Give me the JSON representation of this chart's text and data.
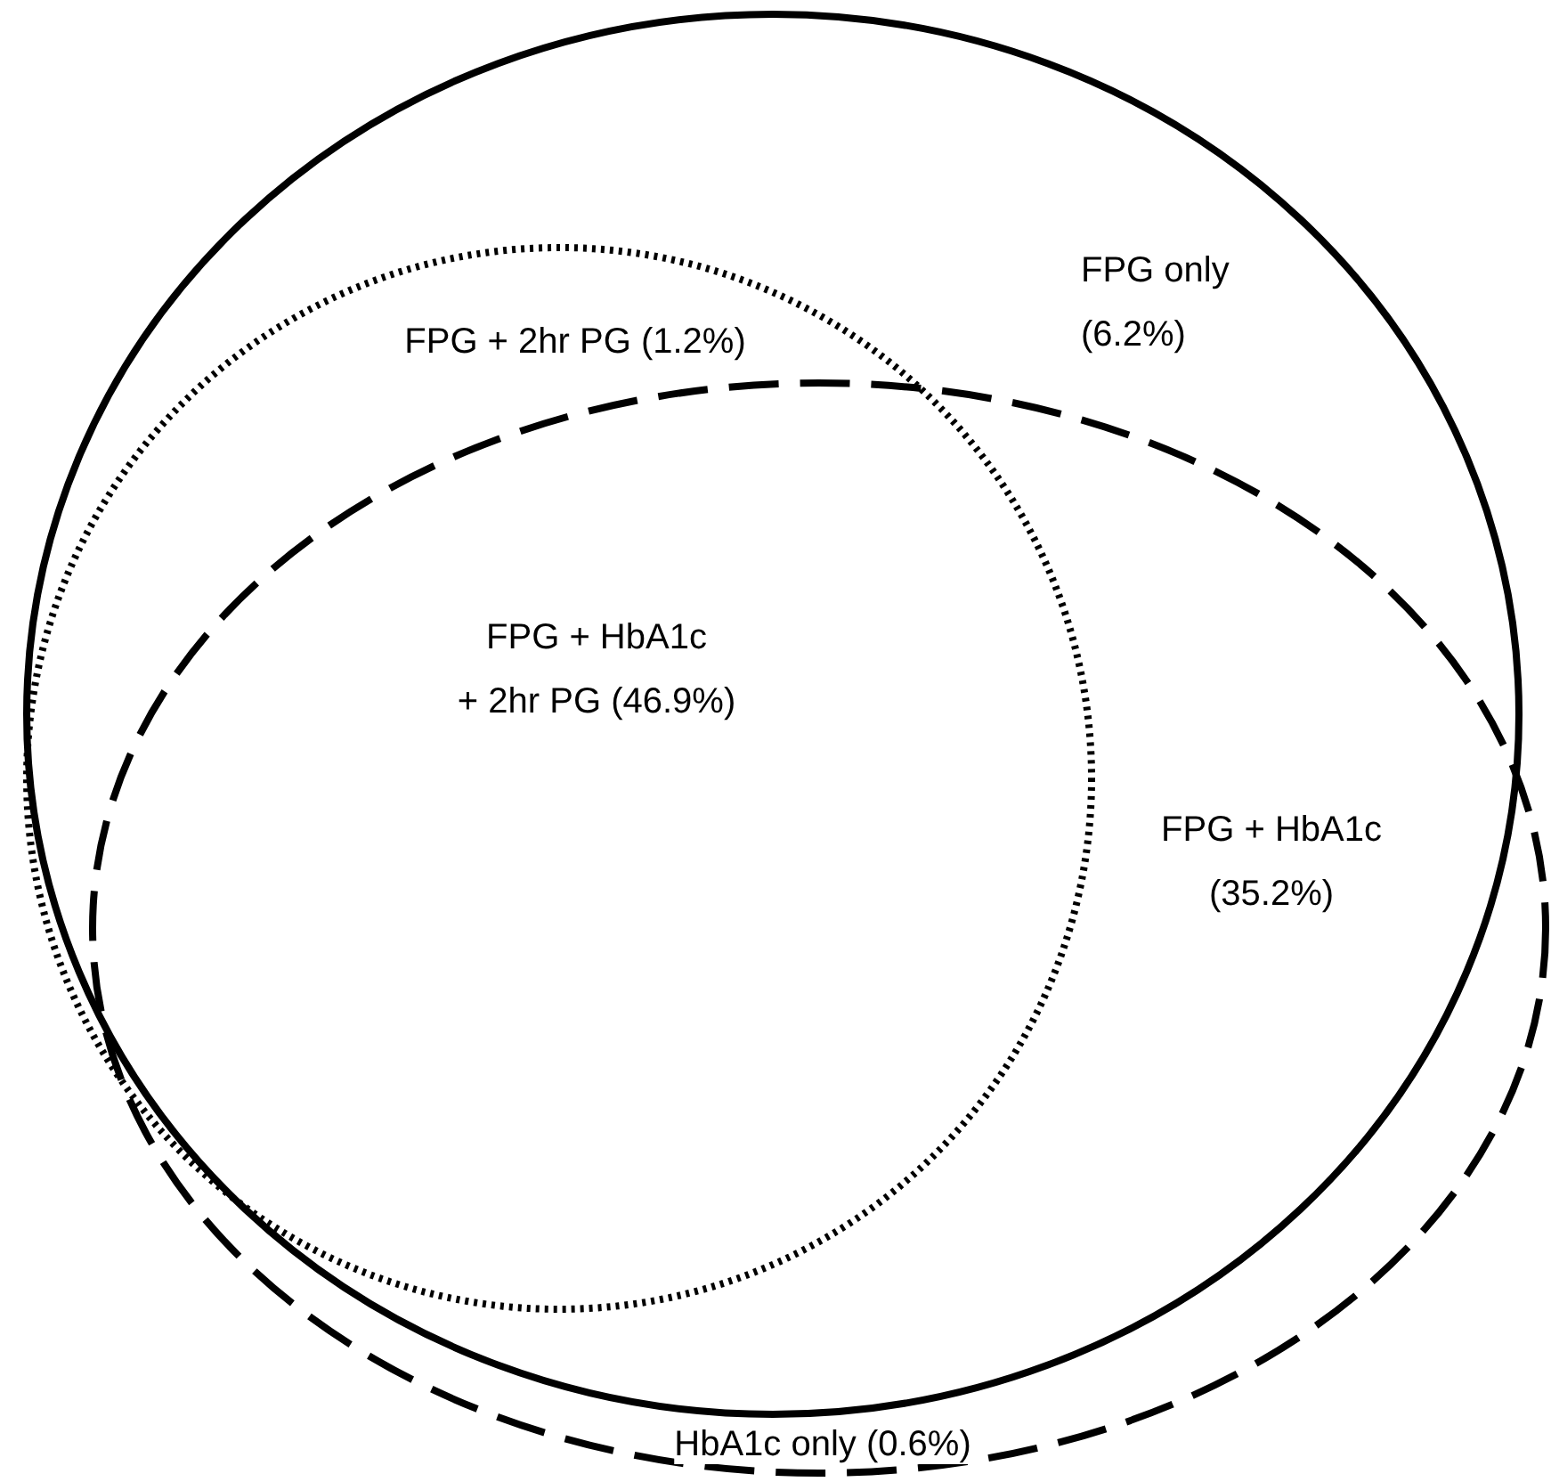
{
  "chart_data": {
    "type": "other",
    "categories": [
      "FPG only",
      "FPG + 2hr PG",
      "FPG + HbA1c + 2hr PG",
      "FPG + HbA1c",
      "HbA1c only"
    ],
    "values": [
      6.2,
      1.2,
      46.9,
      35.2,
      0.6
    ],
    "value_labels": [
      "(6.2%)",
      "(1.2%)",
      "(46.9%)",
      "(35.2%)",
      "(0.6%)"
    ]
  }
}
